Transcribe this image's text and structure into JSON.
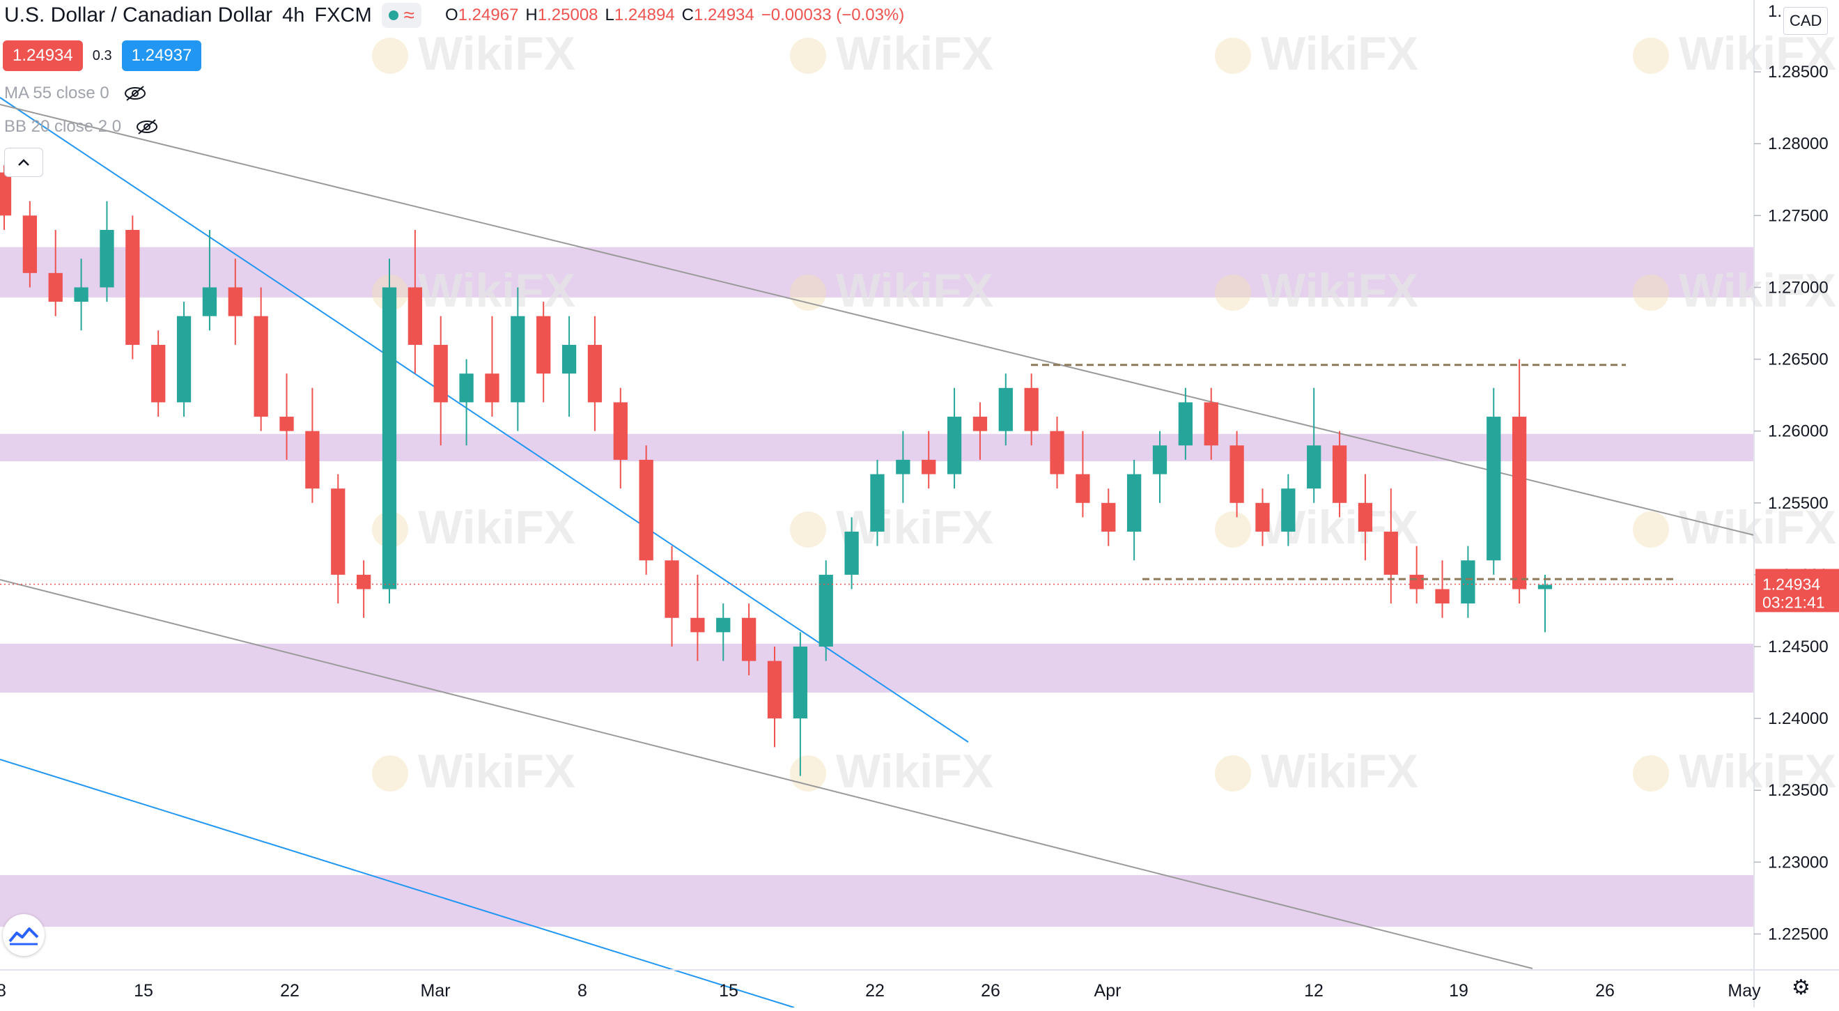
{
  "header": {
    "symbol_title": "U.S. Dollar / Canadian Dollar",
    "interval": "4h",
    "source": "FXCM",
    "ohlc": {
      "o_label": "O",
      "o": "1.24967",
      "h_label": "H",
      "h": "1.25008",
      "l_label": "L",
      "l": "1.24894",
      "c_label": "C",
      "c": "1.24934",
      "change": "−0.00033 (−0.03%)"
    }
  },
  "trade": {
    "sell_price": "1.24934",
    "spread": "0.3",
    "buy_price": "1.24937"
  },
  "indicators": [
    {
      "label": "MA 55 close 0"
    },
    {
      "label": "BB 20 close 2 0"
    }
  ],
  "currency": "CAD",
  "icons": {
    "status": "market-open-dot",
    "replay": "wave-icon",
    "visibility": "eye-off-icon",
    "collapse": "chevron-up-icon",
    "logo": "tradingview-logo-icon",
    "settings": "gear-icon"
  },
  "watermark": "WikiFX",
  "colors": {
    "up": "#26a69a",
    "down": "#ef5350",
    "zone": "#e1c8ea",
    "channel_blue": "#2196f3",
    "channel_gray": "#9a9a9a",
    "level_line": "#8d7a5a",
    "price_label_bg": "#ef5350"
  },
  "chart_data": {
    "type": "candlestick",
    "title": "U.S. Dollar / Canadian Dollar, 4h, FXCM",
    "ylim": [
      1.2225,
      1.29
    ],
    "y_ticks": [
      "1.28500",
      "1.28000",
      "1.27500",
      "1.27000",
      "1.26500",
      "1.26000",
      "1.25500",
      "1.25000",
      "1.24500",
      "1.24000",
      "1.23500",
      "1.23000",
      "1.22500"
    ],
    "y_top_partial": "1.",
    "x_ticks": [
      "8",
      "15",
      "22",
      "Mar",
      "8",
      "15",
      "22",
      "26",
      "Apr",
      "12",
      "19",
      "26",
      "May"
    ],
    "last_price": "1.24934",
    "countdown": "03:21:41",
    "current_price": 1.24934,
    "support_resistance_zones": [
      [
        1.2693,
        1.2728
      ],
      [
        1.2579,
        1.2598
      ],
      [
        1.2418,
        1.2452
      ],
      [
        1.2255,
        1.2291
      ]
    ],
    "horizontal_levels": [
      1.2646,
      1.2497
    ],
    "channel_lines_note": "two blue and two gray descending parallel trend lines",
    "candles_approx": [
      [
        1.278,
        1.2785,
        1.274,
        1.275
      ],
      [
        1.275,
        1.276,
        1.27,
        1.271
      ],
      [
        1.271,
        1.274,
        1.268,
        1.269
      ],
      [
        1.269,
        1.272,
        1.267,
        1.27
      ],
      [
        1.27,
        1.276,
        1.269,
        1.274
      ],
      [
        1.274,
        1.275,
        1.265,
        1.266
      ],
      [
        1.266,
        1.267,
        1.261,
        1.262
      ],
      [
        1.262,
        1.269,
        1.261,
        1.268
      ],
      [
        1.268,
        1.274,
        1.267,
        1.27
      ],
      [
        1.27,
        1.272,
        1.266,
        1.268
      ],
      [
        1.268,
        1.27,
        1.26,
        1.261
      ],
      [
        1.261,
        1.264,
        1.258,
        1.26
      ],
      [
        1.26,
        1.263,
        1.255,
        1.256
      ],
      [
        1.256,
        1.257,
        1.248,
        1.25
      ],
      [
        1.25,
        1.251,
        1.247,
        1.249
      ],
      [
        1.249,
        1.272,
        1.248,
        1.27
      ],
      [
        1.27,
        1.274,
        1.264,
        1.266
      ],
      [
        1.266,
        1.268,
        1.259,
        1.262
      ],
      [
        1.262,
        1.265,
        1.259,
        1.264
      ],
      [
        1.264,
        1.268,
        1.261,
        1.262
      ],
      [
        1.262,
        1.27,
        1.26,
        1.268
      ],
      [
        1.268,
        1.269,
        1.262,
        1.264
      ],
      [
        1.264,
        1.268,
        1.261,
        1.266
      ],
      [
        1.266,
        1.268,
        1.26,
        1.262
      ],
      [
        1.262,
        1.263,
        1.256,
        1.258
      ],
      [
        1.258,
        1.259,
        1.25,
        1.251
      ],
      [
        1.251,
        1.252,
        1.245,
        1.247
      ],
      [
        1.247,
        1.25,
        1.244,
        1.246
      ],
      [
        1.246,
        1.248,
        1.244,
        1.247
      ],
      [
        1.247,
        1.248,
        1.243,
        1.244
      ],
      [
        1.244,
        1.245,
        1.238,
        1.24
      ],
      [
        1.24,
        1.246,
        1.236,
        1.245
      ],
      [
        1.245,
        1.251,
        1.244,
        1.25
      ],
      [
        1.25,
        1.254,
        1.249,
        1.253
      ],
      [
        1.253,
        1.258,
        1.252,
        1.257
      ],
      [
        1.257,
        1.26,
        1.255,
        1.258
      ],
      [
        1.258,
        1.26,
        1.256,
        1.257
      ],
      [
        1.257,
        1.263,
        1.256,
        1.261
      ],
      [
        1.261,
        1.262,
        1.258,
        1.26
      ],
      [
        1.26,
        1.264,
        1.259,
        1.263
      ],
      [
        1.263,
        1.264,
        1.259,
        1.26
      ],
      [
        1.26,
        1.261,
        1.256,
        1.257
      ],
      [
        1.257,
        1.26,
        1.254,
        1.255
      ],
      [
        1.255,
        1.256,
        1.252,
        1.253
      ],
      [
        1.253,
        1.258,
        1.251,
        1.257
      ],
      [
        1.257,
        1.26,
        1.255,
        1.259
      ],
      [
        1.259,
        1.263,
        1.258,
        1.262
      ],
      [
        1.262,
        1.263,
        1.258,
        1.259
      ],
      [
        1.259,
        1.26,
        1.254,
        1.255
      ],
      [
        1.255,
        1.256,
        1.252,
        1.253
      ],
      [
        1.253,
        1.257,
        1.252,
        1.256
      ],
      [
        1.256,
        1.263,
        1.255,
        1.259
      ],
      [
        1.259,
        1.26,
        1.254,
        1.255
      ],
      [
        1.255,
        1.257,
        1.251,
        1.253
      ],
      [
        1.253,
        1.256,
        1.248,
        1.25
      ],
      [
        1.25,
        1.252,
        1.248,
        1.249
      ],
      [
        1.249,
        1.251,
        1.247,
        1.248
      ],
      [
        1.248,
        1.252,
        1.247,
        1.251
      ],
      [
        1.251,
        1.263,
        1.25,
        1.261
      ],
      [
        1.261,
        1.265,
        1.248,
        1.249
      ],
      [
        1.249,
        1.25,
        1.246,
        1.2493
      ]
    ]
  }
}
